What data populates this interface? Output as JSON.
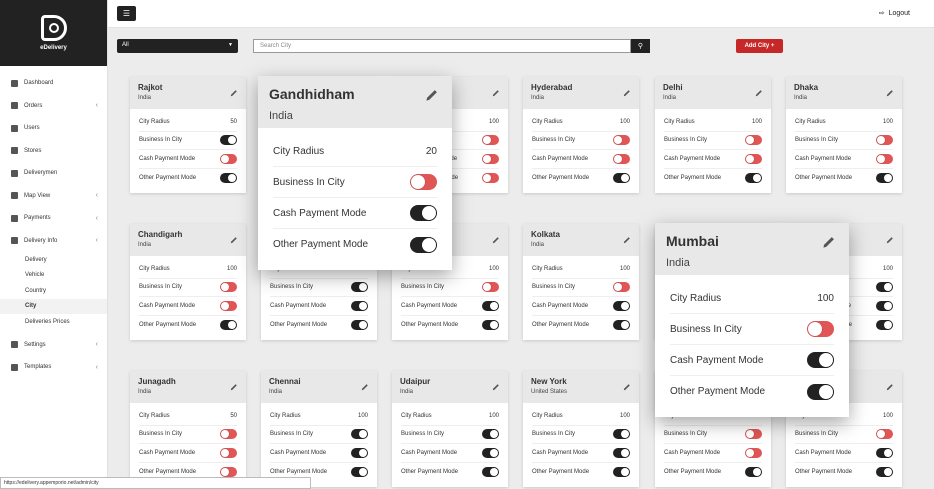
{
  "brand": {
    "name": "eDelivery"
  },
  "sidebar": {
    "items": [
      {
        "label": "Dashboard",
        "icon": "dashboard-icon",
        "chevron": false
      },
      {
        "label": "Orders",
        "icon": "orders-icon",
        "chevron": true
      },
      {
        "label": "Users",
        "icon": "user-icon",
        "chevron": false
      },
      {
        "label": "Stores",
        "icon": "store-icon",
        "chevron": false
      },
      {
        "label": "Deliverymen",
        "icon": "truck-icon",
        "chevron": false
      },
      {
        "label": "Map View",
        "icon": "map-icon",
        "chevron": true
      },
      {
        "label": "Payments",
        "icon": "payment-icon",
        "chevron": true
      },
      {
        "label": "Delivery Info",
        "icon": "info-icon",
        "chevron": true
      }
    ],
    "subitems": [
      "Delivery",
      "Vehicle",
      "Country",
      "City",
      "Deliveries Prices"
    ],
    "active_sub": "City",
    "bottom_items": [
      {
        "label": "Settings",
        "icon": "gear-icon",
        "chevron": true
      },
      {
        "label": "Templates",
        "icon": "template-icon",
        "chevron": true
      }
    ]
  },
  "topbar": {
    "logout_label": "Logout"
  },
  "filter": {
    "select_value": "All",
    "search_placeholder": "Search City",
    "add_label": "Add City"
  },
  "row_labels": {
    "radius": "City Radius",
    "business": "Business In City",
    "cash": "Cash Payment Mode",
    "other": "Other Payment Mode"
  },
  "cards": [
    {
      "city": "Rajkot",
      "country": "India",
      "radius": "50",
      "business": true,
      "cash": false,
      "other": true
    },
    {
      "city": "",
      "country": "",
      "radius": "100",
      "business": false,
      "cash": false,
      "other": false
    },
    {
      "city": "",
      "country": "",
      "radius": "100",
      "business": false,
      "cash": false,
      "other": false
    },
    {
      "city": "Hyderabad",
      "country": "India",
      "radius": "100",
      "business": false,
      "cash": false,
      "other": true
    },
    {
      "city": "Delhi",
      "country": "India",
      "radius": "100",
      "business": false,
      "cash": false,
      "other": true
    },
    {
      "city": "Dhaka",
      "country": "India",
      "radius": "100",
      "business": false,
      "cash": false,
      "other": true
    },
    {
      "city": "Chandigarh",
      "country": "India",
      "radius": "100",
      "business": false,
      "cash": false,
      "other": true
    },
    {
      "city": "",
      "country": "",
      "radius": "",
      "business": true,
      "cash": true,
      "other": true
    },
    {
      "city": "",
      "country": "",
      "radius": "100",
      "business": false,
      "cash": true,
      "other": true
    },
    {
      "city": "Kolkata",
      "country": "India",
      "radius": "100",
      "business": false,
      "cash": true,
      "other": true
    },
    {
      "city": "",
      "country": "",
      "radius": "",
      "business": true,
      "cash": true,
      "other": true
    },
    {
      "city": "",
      "country": "",
      "radius": "100",
      "business": true,
      "cash": true,
      "other": true
    },
    {
      "city": "Junagadh",
      "country": "India",
      "radius": "50",
      "business": false,
      "cash": false,
      "other": false
    },
    {
      "city": "Chennai",
      "country": "India",
      "radius": "100",
      "business": true,
      "cash": true,
      "other": true
    },
    {
      "city": "Udaipur",
      "country": "India",
      "radius": "100",
      "business": true,
      "cash": true,
      "other": true
    },
    {
      "city": "New York",
      "country": "United States",
      "radius": "100",
      "business": true,
      "cash": true,
      "other": true
    },
    {
      "city": "",
      "country": "",
      "radius": "",
      "business": false,
      "cash": false,
      "other": true
    },
    {
      "city": "s",
      "country": "",
      "radius": "100",
      "business": false,
      "cash": true,
      "other": true
    }
  ],
  "popups": [
    {
      "city": "Gandhidham",
      "country": "India",
      "radius": "20",
      "business": false,
      "cash": true,
      "other": true
    },
    {
      "city": "Mumbai",
      "country": "India",
      "radius": "100",
      "business": false,
      "cash": true,
      "other": true
    }
  ],
  "statusbar": {
    "url": "https://edelivery.appemporio.net/admin/city"
  },
  "colors": {
    "toggle_off": "#e05555",
    "toggle_on": "#222222",
    "accent": "#c62828"
  }
}
